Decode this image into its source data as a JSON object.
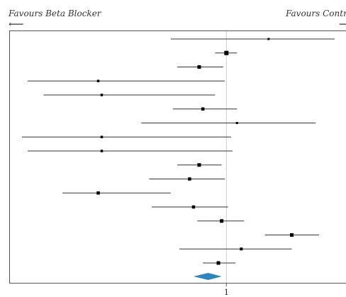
{
  "header": {
    "left_label": "Favours Beta Blocker",
    "right_label": "Favours Contro",
    "left_arrow": "⟵",
    "right_arrow": "⟶"
  },
  "colors": {
    "line": "#333333",
    "point": "#000000",
    "reference_line": "#cccccc",
    "diamond": "#2e86c1",
    "frame": "#555555"
  },
  "chart_data": {
    "type": "forest",
    "x_scale": "log",
    "reference_value": 1,
    "x_ticks": [
      "1"
    ],
    "xlim": [
      0.25,
      2.2
    ],
    "rows": [
      {
        "estimate": 1.31,
        "lower": 0.7,
        "upper": 2.0,
        "weight": 1
      },
      {
        "estimate": 1.0,
        "lower": 0.93,
        "upper": 1.07,
        "weight": 4
      },
      {
        "estimate": 0.84,
        "lower": 0.73,
        "upper": 0.98,
        "weight": 3
      },
      {
        "estimate": 0.44,
        "lower": 0.28,
        "upper": 0.99,
        "weight": 1.5
      },
      {
        "estimate": 0.45,
        "lower": 0.31,
        "upper": 0.93,
        "weight": 1.5
      },
      {
        "estimate": 0.86,
        "lower": 0.71,
        "upper": 1.07,
        "weight": 2.5
      },
      {
        "estimate": 1.07,
        "lower": 0.58,
        "upper": 1.77,
        "weight": 1
      },
      {
        "estimate": 0.45,
        "lower": 0.27,
        "upper": 1.03,
        "weight": 1.5
      },
      {
        "estimate": 0.45,
        "lower": 0.28,
        "upper": 1.04,
        "weight": 1.5
      },
      {
        "estimate": 0.84,
        "lower": 0.73,
        "upper": 0.97,
        "weight": 3
      },
      {
        "estimate": 0.79,
        "lower": 0.61,
        "upper": 0.99,
        "weight": 2.5
      },
      {
        "estimate": 0.44,
        "lower": 0.35,
        "upper": 0.7,
        "weight": 2.5
      },
      {
        "estimate": 0.81,
        "lower": 0.62,
        "upper": 1.01,
        "weight": 2.5
      },
      {
        "estimate": 0.97,
        "lower": 0.83,
        "upper": 1.12,
        "weight": 3
      },
      {
        "estimate": 1.52,
        "lower": 1.28,
        "upper": 1.81,
        "weight": 3
      },
      {
        "estimate": 1.1,
        "lower": 0.74,
        "upper": 1.52,
        "weight": 2
      },
      {
        "estimate": 0.95,
        "lower": 0.86,
        "upper": 1.06,
        "weight": 3
      }
    ],
    "pooled": {
      "estimate": 0.89,
      "lower": 0.81,
      "upper": 0.97
    }
  }
}
